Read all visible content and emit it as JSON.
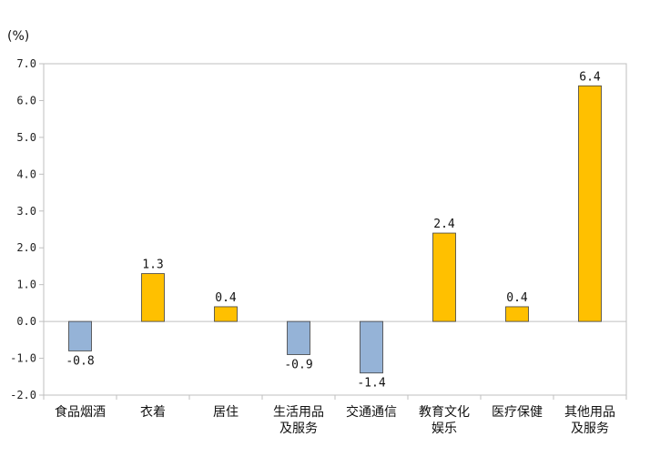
{
  "chart_data": {
    "type": "bar",
    "unit_label": "(%)",
    "categories": [
      [
        "食品烟酒"
      ],
      [
        "衣着"
      ],
      [
        "居住"
      ],
      [
        "生活用品",
        "及服务"
      ],
      [
        "交通通信"
      ],
      [
        "教育文化",
        "娱乐"
      ],
      [
        "医疗保健"
      ],
      [
        "其他用品",
        "及服务"
      ]
    ],
    "values": [
      -0.8,
      1.3,
      0.4,
      -0.9,
      -1.4,
      2.4,
      0.4,
      6.4
    ],
    "value_labels": [
      "-0.8",
      "1.3",
      "0.4",
      "-0.9",
      "-1.4",
      "2.4",
      "0.4",
      "6.4"
    ],
    "ylim": [
      -2.0,
      7.0
    ],
    "yticks": [
      "7.0",
      "6.0",
      "5.0",
      "4.0",
      "3.0",
      "2.0",
      "1.0",
      "0.0",
      "-1.0",
      "-2.0"
    ],
    "grid": false,
    "colors": {
      "positive": "#FFC000",
      "negative": "#95B3D7",
      "bar_stroke": "#404040",
      "axis": "#BFBFBF"
    }
  }
}
